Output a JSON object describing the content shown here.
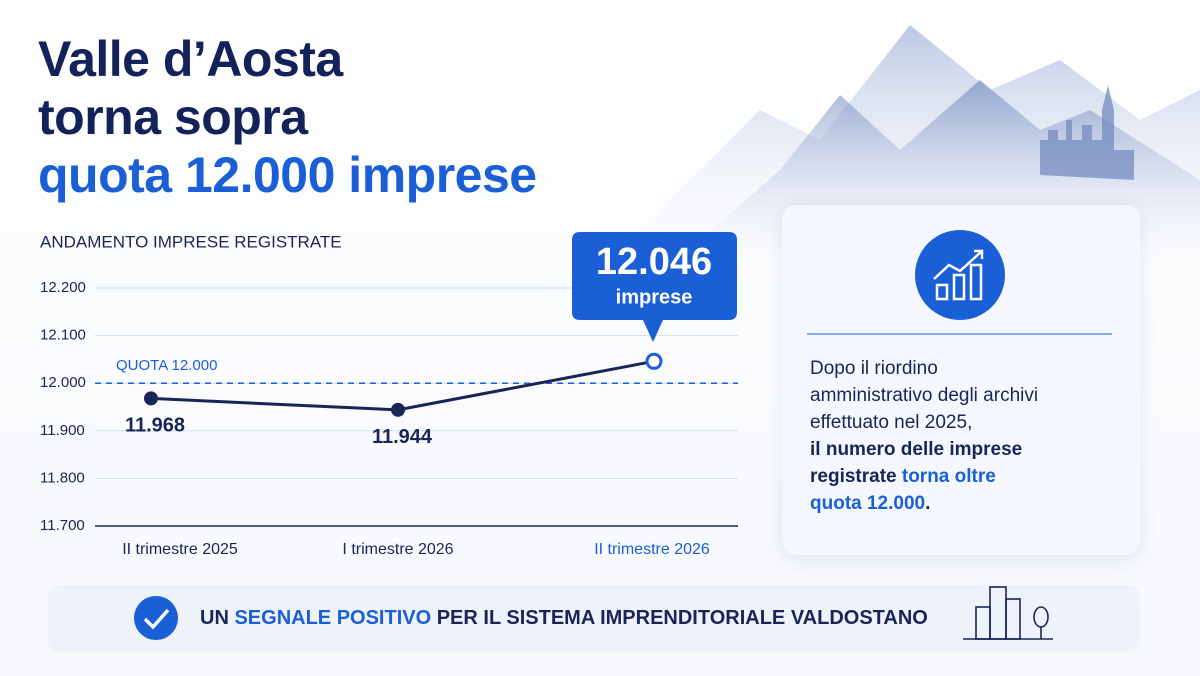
{
  "title_lines": [
    "Valle d’Aosta",
    "torna sopra",
    "quota 12.000 imprese"
  ],
  "chart_data": {
    "type": "line",
    "title": "ANDAMENTO IMPRESE REGISTRATE",
    "categories": [
      "II trimestre 2025",
      "I trimestre 2026",
      "II trimestre 2026"
    ],
    "values": [
      11968,
      11944,
      12046
    ],
    "value_labels": [
      "11.968",
      "11.944",
      "12.046"
    ],
    "callout_unit": "imprese",
    "color": "#1a2557",
    "highlight_color": "#1a5fd6",
    "ylim": [
      11700,
      12200
    ],
    "yticks": [
      {
        "value": 11700,
        "label": "11.700"
      },
      {
        "value": 11800,
        "label": "11.800"
      },
      {
        "value": 11900,
        "label": "11.900"
      },
      {
        "value": 12000,
        "label": "12.000"
      },
      {
        "value": 12100,
        "label": "12.100"
      },
      {
        "value": 12200,
        "label": "12.200"
      }
    ],
    "reference_line": {
      "value": 12000,
      "label": "QUOTA 12.000"
    },
    "grid": true
  },
  "card": {
    "text": [
      "Dopo il riordino amministrativo degli archivi effettuato nel 2025,",
      "il numero delle imprese registrate ",
      "torna oltre quota 12.000",
      "."
    ]
  },
  "banner": {
    "text": [
      "UN ",
      "SEGNALE POSITIVO",
      " PER IL SISTEMA IMPRENDITORIALE VALDOSTANO"
    ]
  }
}
